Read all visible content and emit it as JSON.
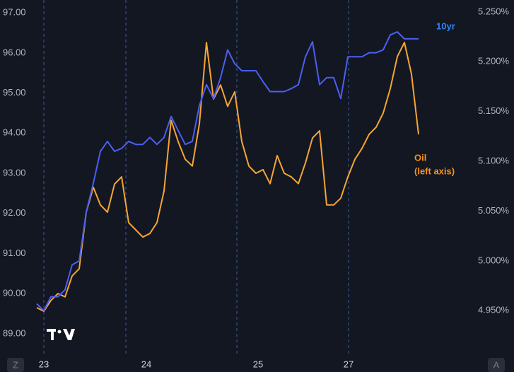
{
  "chart_data": {
    "type": "line",
    "x": [
      0,
      2,
      4,
      6,
      8,
      10,
      12,
      14,
      16,
      18,
      20,
      22,
      24,
      26,
      28,
      30,
      32,
      34,
      36,
      38,
      40,
      42,
      44,
      46,
      48,
      50,
      52,
      54,
      56,
      58,
      60,
      62,
      64,
      66,
      68,
      70,
      72,
      74,
      76,
      78,
      80,
      82,
      84,
      86,
      88,
      90,
      92,
      94,
      96,
      98,
      100,
      102,
      104,
      106,
      108
    ],
    "xlim": [
      0,
      123
    ],
    "xticks": [
      {
        "value": 2,
        "label": "23"
      },
      {
        "value": 31,
        "label": "24"
      },
      {
        "value": 62.6,
        "label": "25"
      },
      {
        "value": 88.2,
        "label": "27"
      }
    ],
    "xgrid": [
      2,
      25.2,
      56.6,
      88.2
    ],
    "ylim": [
      88.68,
      97.32
    ],
    "yticks": [
      {
        "value": 89,
        "label": "89.00"
      },
      {
        "value": 90,
        "label": "90.00"
      },
      {
        "value": 91,
        "label": "91.00"
      },
      {
        "value": 92,
        "label": "92.00"
      },
      {
        "value": 93,
        "label": "93.00"
      },
      {
        "value": 94,
        "label": "94.00"
      },
      {
        "value": 95,
        "label": "95.00"
      },
      {
        "value": 96,
        "label": "96.00"
      },
      {
        "value": 97,
        "label": "97.00"
      }
    ],
    "y2lim": [
      4.914,
      5.262
    ],
    "y2ticks": [
      {
        "value": 4.95,
        "label": "4.950%"
      },
      {
        "value": 5.0,
        "label": "5.000%"
      },
      {
        "value": 5.05,
        "label": "5.050%"
      },
      {
        "value": 5.1,
        "label": "5.100%"
      },
      {
        "value": 5.15,
        "label": "5.150%"
      },
      {
        "value": 5.2,
        "label": "5.200%"
      },
      {
        "value": 5.25,
        "label": "5.250%"
      }
    ],
    "series": [
      {
        "name": "10yr",
        "color": "#4b5ff2",
        "label_color": "#2f86f6",
        "axis": "y2",
        "values": [
          4.957,
          4.95,
          4.964,
          4.964,
          4.971,
          4.996,
          5.0,
          5.049,
          5.078,
          5.11,
          5.12,
          5.11,
          5.113,
          5.12,
          5.117,
          5.117,
          5.124,
          5.117,
          5.124,
          5.145,
          5.131,
          5.117,
          5.12,
          5.156,
          5.177,
          5.163,
          5.184,
          5.212,
          5.198,
          5.191,
          5.191,
          5.191,
          5.18,
          5.17,
          5.17,
          5.17,
          5.173,
          5.177,
          5.205,
          5.22,
          5.177,
          5.184,
          5.184,
          5.163,
          5.205,
          5.205,
          5.205,
          5.209,
          5.209,
          5.212,
          5.227,
          5.23,
          5.223,
          5.223,
          5.223
        ]
      },
      {
        "name": "Oil",
        "color": "#f7a533",
        "label_color": "#f7931a",
        "axis": "y",
        "values": [
          89.65,
          89.56,
          89.83,
          90.0,
          89.92,
          90.44,
          90.62,
          92.03,
          92.65,
          92.21,
          92.03,
          92.73,
          92.91,
          91.77,
          91.59,
          91.41,
          91.5,
          91.77,
          92.56,
          94.32,
          93.79,
          93.35,
          93.18,
          94.23,
          96.26,
          94.85,
          95.2,
          94.67,
          95.03,
          93.79,
          93.18,
          93.0,
          93.09,
          92.74,
          93.44,
          93.0,
          92.91,
          92.74,
          93.26,
          93.88,
          94.06,
          92.21,
          92.21,
          92.38,
          92.91,
          93.35,
          93.62,
          93.97,
          94.15,
          94.5,
          95.11,
          95.91,
          96.26,
          95.47,
          93.97
        ]
      }
    ],
    "annotations": [
      "10yr",
      "Oil",
      "(left axis)"
    ],
    "corner_buttons": [
      "Z",
      "A"
    ]
  }
}
